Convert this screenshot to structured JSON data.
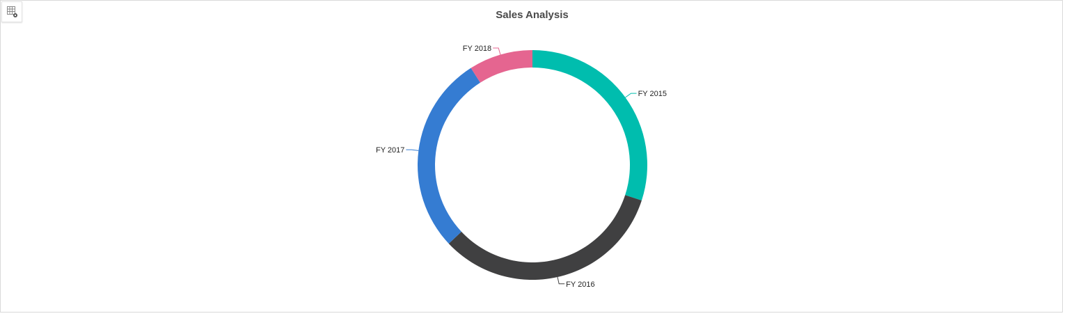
{
  "toolbar": {
    "icon": "table-settings-icon"
  },
  "chart_data": {
    "type": "pie",
    "title": "Sales Analysis",
    "donut": true,
    "categories": [
      "FY 2015",
      "FY 2016",
      "FY 2017",
      "FY 2018"
    ],
    "values": [
      30,
      33,
      28,
      9
    ],
    "colors": [
      "#00bdae",
      "#404041",
      "#357cd2",
      "#e56590"
    ],
    "legend": "none"
  }
}
